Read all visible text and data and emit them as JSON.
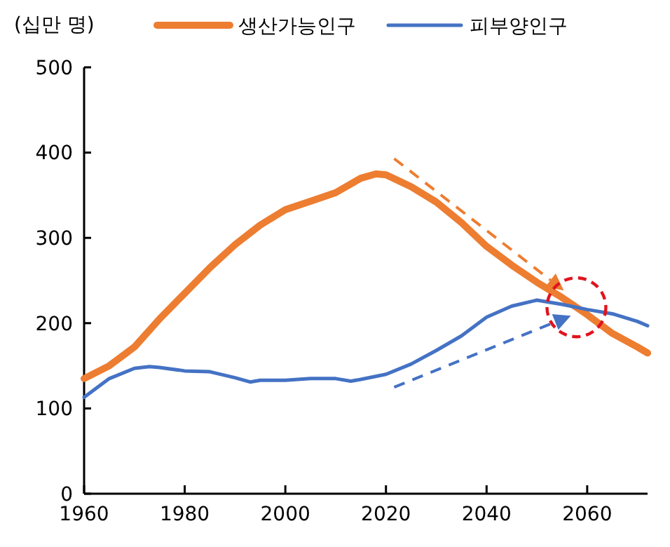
{
  "chart_data": {
    "type": "line",
    "ylabel": "(십만 명)",
    "legend": "top",
    "xlim": [
      1960,
      2072
    ],
    "xticks": [
      1960,
      1980,
      2000,
      2020,
      2040,
      2060
    ],
    "ylim": [
      0,
      500
    ],
    "yticks": [
      0,
      100,
      200,
      300,
      400,
      500
    ],
    "grid": false,
    "series": [
      {
        "name": "생산가능인구",
        "color": "#ed7d31",
        "x": [
          1960,
          1965,
          1970,
          1975,
          1980,
          1985,
          1990,
          1995,
          2000,
          2005,
          2010,
          2015,
          2018,
          2020,
          2025,
          2030,
          2035,
          2040,
          2045,
          2050,
          2055,
          2060,
          2065,
          2070,
          2072
        ],
        "values": [
          135,
          150,
          172,
          205,
          235,
          265,
          292,
          315,
          333,
          343,
          353,
          370,
          375,
          374,
          360,
          342,
          318,
          290,
          268,
          248,
          230,
          210,
          188,
          172,
          165
        ]
      },
      {
        "name": "피부양인구",
        "color": "#4472c4",
        "x": [
          1960,
          1965,
          1970,
          1973,
          1975,
          1980,
          1985,
          1990,
          1993,
          1995,
          2000,
          2005,
          2010,
          2013,
          2015,
          2020,
          2025,
          2030,
          2035,
          2040,
          2045,
          2050,
          2055,
          2060,
          2065,
          2070,
          2072
        ],
        "values": [
          113,
          135,
          147,
          149,
          148,
          144,
          143,
          136,
          131,
          133,
          133,
          135,
          135,
          132,
          134,
          140,
          152,
          168,
          185,
          207,
          220,
          227,
          222,
          216,
          211,
          202,
          197
        ]
      }
    ]
  }
}
